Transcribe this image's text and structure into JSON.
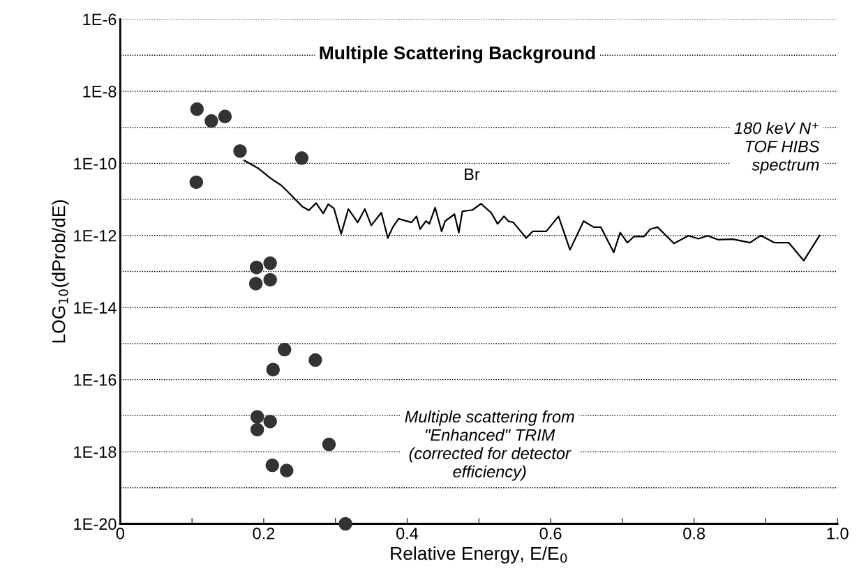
{
  "chart_data": {
    "type": "line",
    "title": "Multiple Scattering Background",
    "xlabel": "Relative Energy, E/E$_{0}$",
    "ylabel": "LOG$_{10}$(dProb/dE)",
    "annotations": [
      "180 keV N⁺\nTOF HIBS\nspectrum",
      "Br",
      "Multiple scattering from\n\"Enhanced\" TRIM\n(corrected for detector\nefficiency)"
    ],
    "log": "y",
    "grid": "y",
    "xlim": [
      0,
      1.0
    ],
    "ylim": [
      1e-20,
      1e-06
    ],
    "xticks": [
      0,
      {
        "value": 0.1,
        "label": null
      },
      0.2,
      {
        "value": 0.3,
        "label": null
      },
      0.4,
      {
        "value": 0.5,
        "label": null
      },
      0.6,
      {
        "value": 0.7,
        "label": null
      },
      0.8,
      {
        "value": 0.9,
        "label": null
      },
      {
        "value": 1.0,
        "label": "1.0"
      }
    ],
    "yticks": [
      {
        "value": 1e-20,
        "label": "1E-20"
      },
      {
        "value": 1e-19,
        "label": null
      },
      {
        "value": 1e-18,
        "label": "1E-18"
      },
      {
        "value": 1e-17,
        "label": null
      },
      {
        "value": 1e-16,
        "label": "1E-16"
      },
      {
        "value": 1e-15,
        "label": null
      },
      {
        "value": 1e-14,
        "label": "1E-14"
      },
      {
        "value": 1e-13,
        "label": null
      },
      {
        "value": 1e-12,
        "label": "1E-12"
      },
      {
        "value": 1e-11,
        "label": null
      },
      {
        "value": 1e-10,
        "label": "1E-10"
      },
      {
        "value": 1e-09,
        "label": null
      },
      {
        "value": 1e-08,
        "label": "1E-8"
      },
      {
        "value": 1e-07,
        "label": null
      },
      {
        "value": 1e-06,
        "label": "1E-6"
      }
    ],
    "series": [
      {
        "color": "#000000",
        "marker": "none",
        "line_style": "solid",
        "x": [
          0.173,
          0.192,
          0.21,
          0.224,
          0.234,
          0.244,
          0.254,
          0.263,
          0.273,
          0.283,
          0.29,
          0.298,
          0.308,
          0.318,
          0.331,
          0.341,
          0.35,
          0.364,
          0.373,
          0.38,
          0.388,
          0.406,
          0.413,
          0.418,
          0.426,
          0.431,
          0.439,
          0.448,
          0.453,
          0.466,
          0.472,
          0.477,
          0.491,
          0.503,
          0.517,
          0.526,
          0.535,
          0.541,
          0.548,
          0.566,
          0.575,
          0.594,
          0.611,
          0.627,
          0.646,
          0.66,
          0.67,
          0.688,
          0.697,
          0.707,
          0.716,
          0.73,
          0.739,
          0.749,
          0.772,
          0.792,
          0.806,
          0.819,
          0.834,
          0.854,
          0.878,
          0.893,
          0.912,
          0.932,
          0.953,
          0.975
        ],
        "values": [
          1.2e-10,
          7.4e-11,
          3.8e-11,
          2.5e-11,
          1.6e-11,
          1e-11,
          6.3e-12,
          5e-12,
          7.9e-12,
          4.1e-12,
          7.4e-12,
          5.6e-12,
          1.1e-12,
          5.4e-12,
          2.3e-12,
          5.4e-12,
          1.9e-12,
          4.3e-12,
          8.5e-13,
          1.7e-12,
          2.9e-12,
          2.3e-12,
          3.4e-12,
          1.5e-12,
          2.5e-12,
          2.1e-12,
          5.9e-12,
          1.3e-12,
          2.5e-12,
          3.9e-12,
          1.2e-12,
          4.7e-12,
          5.1e-12,
          7.6e-12,
          4.3e-12,
          2.1e-12,
          3.4e-12,
          2.5e-12,
          2.3e-12,
          8.5e-13,
          1.3e-12,
          1.3e-12,
          3.4e-12,
          4e-13,
          2.5e-12,
          1.7e-12,
          1.7e-12,
          3.4e-13,
          1.2e-12,
          6.3e-13,
          9.3e-13,
          9.3e-13,
          1.5e-12,
          1.7e-12,
          6e-13,
          9.8e-13,
          8.1e-13,
          9.8e-13,
          7.6e-13,
          7.9e-13,
          6.3e-13,
          1e-12,
          6.3e-13,
          6.3e-13,
          2e-13,
          1e-12
        ]
      },
      {
        "type": "scatter",
        "color": "#333333",
        "marker": "circle",
        "x": [
          0.107,
          0.127,
          0.146,
          0.167,
          0.253,
          0.106,
          0.19,
          0.209,
          0.189,
          0.209,
          0.229,
          0.272,
          0.213,
          0.191,
          0.209,
          0.191,
          0.291,
          0.212,
          0.232,
          0.314
        ],
        "values": [
          3.2e-09,
          1.5e-09,
          2e-09,
          2.2e-10,
          1.4e-10,
          3e-11,
          1.3e-13,
          1.7e-13,
          4.6e-14,
          5.9e-14,
          6.8e-16,
          3.5e-16,
          1.9e-16,
          9.3e-18,
          6.9e-18,
          4.1e-18,
          1.6e-18,
          4.2e-19,
          3e-19,
          1e-20
        ]
      }
    ]
  }
}
